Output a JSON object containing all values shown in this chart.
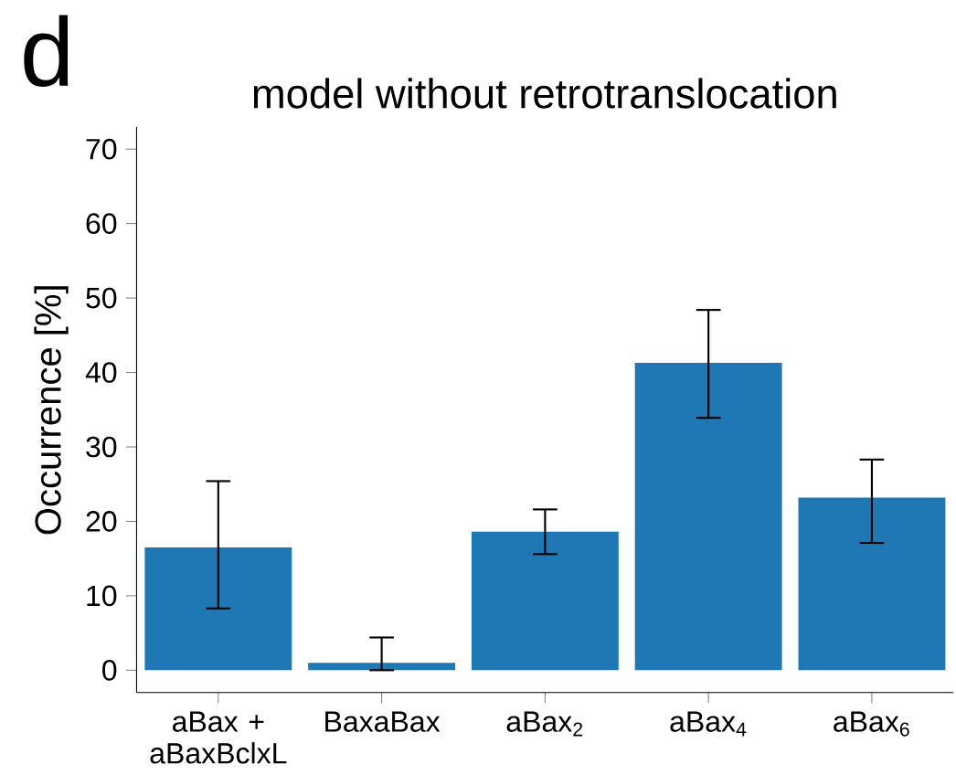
{
  "chart_data": {
    "type": "bar",
    "title": "model without retrotranslocation",
    "ylabel": "Occurrence [%]",
    "annotations": [
      "d"
    ],
    "categories": [
      "aBax + aBaxBclxL",
      "BaxaBax",
      "aBax$_{2}$",
      "aBax$_{4}$",
      "aBax$_{6}$"
    ],
    "values": [
      16.5,
      1.0,
      18.6,
      41.3,
      23.2
    ],
    "errors": [
      [
        8.3,
        25.4
      ],
      [
        0.0,
        4.4
      ],
      [
        15.6,
        21.6
      ],
      [
        33.9,
        48.4
      ],
      [
        17.1,
        28.3
      ]
    ],
    "color": "#1f77b4",
    "ylim": [
      -3,
      73
    ],
    "yticks": [
      0,
      10,
      20,
      30,
      40,
      50,
      60,
      70
    ],
    "grid": false,
    "legend": false
  }
}
